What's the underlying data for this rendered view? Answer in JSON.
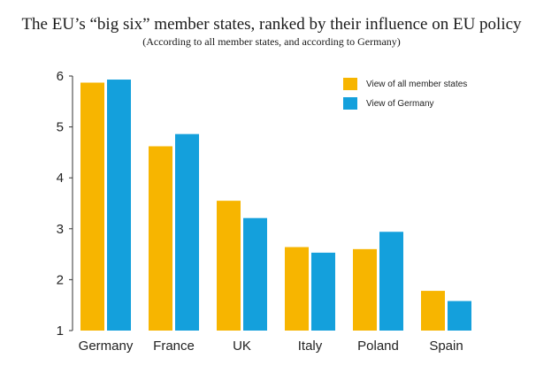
{
  "chart_data": {
    "type": "bar",
    "title": "The EU’s “big six” member states, ranked by their influence on EU policy",
    "subtitle": "(According to all member states, and according to Germany)",
    "xlabel": "",
    "ylabel": "",
    "ylim": [
      1,
      6
    ],
    "yticks": [
      1,
      2,
      3,
      4,
      5,
      6
    ],
    "categories": [
      "Germany",
      "France",
      "UK",
      "Italy",
      "Poland",
      "Spain"
    ],
    "series": [
      {
        "name": "View of all member states",
        "color": "#f7b500",
        "values": [
          5.87,
          4.62,
          3.55,
          2.64,
          2.6,
          1.78
        ]
      },
      {
        "name": "View of Germany",
        "color": "#14a0dc",
        "values": [
          5.93,
          4.86,
          3.21,
          2.53,
          2.94,
          1.58
        ]
      }
    ],
    "legend_position": "top-right",
    "grid": false
  }
}
